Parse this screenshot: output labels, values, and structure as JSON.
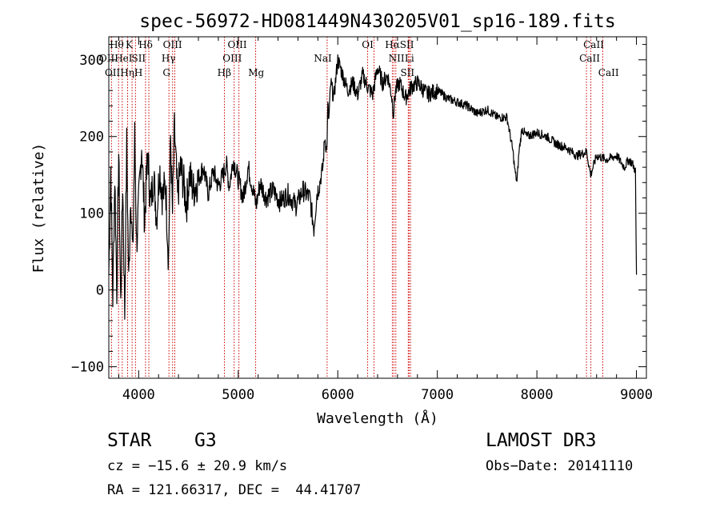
{
  "chart_data": {
    "type": "line",
    "title": "spec-56972-HD081449N430205V01_sp16-189.fits",
    "xlabel": "Wavelength (Å)",
    "ylabel": "Flux (relative)",
    "xlim": [
      3700,
      9100
    ],
    "ylim": [
      -115,
      330
    ],
    "x_ticks": [
      4000,
      5000,
      6000,
      7000,
      8000,
      9000
    ],
    "x_tick_labels": [
      "4000",
      "5000",
      "6000",
      "7000",
      "8000",
      "9000"
    ],
    "y_ticks": [
      -100,
      0,
      100,
      200,
      300
    ],
    "y_tick_labels": [
      "−100",
      "0",
      "100",
      "200",
      "300"
    ],
    "series": [
      {
        "name": "flux",
        "color": "#000000",
        "x": [
          3700,
          3720,
          3740,
          3760,
          3780,
          3800,
          3820,
          3840,
          3860,
          3880,
          3900,
          3920,
          3940,
          3960,
          3980,
          4000,
          4030,
          4060,
          4090,
          4120,
          4150,
          4180,
          4210,
          4240,
          4270,
          4300,
          4320,
          4340,
          4360,
          4390,
          4420,
          4450,
          4480,
          4510,
          4550,
          4600,
          4650,
          4700,
          4750,
          4800,
          4850,
          4880,
          4910,
          4950,
          5000,
          5050,
          5100,
          5150,
          5180,
          5220,
          5280,
          5350,
          5420,
          5500,
          5580,
          5650,
          5720,
          5760,
          5790,
          5820,
          5850,
          5870,
          5890,
          5900,
          5910,
          5930,
          5960,
          6000,
          6050,
          6100,
          6150,
          6200,
          6250,
          6300,
          6350,
          6400,
          6450,
          6500,
          6540,
          6560,
          6580,
          6620,
          6680,
          6740,
          6800,
          6900,
          7000,
          7100,
          7200,
          7300,
          7400,
          7500,
          7600,
          7700,
          7760,
          7780,
          7800,
          7820,
          7850,
          7900,
          8000,
          8100,
          8200,
          8300,
          8400,
          8500,
          8540,
          8600,
          8700,
          8800,
          8880,
          8920,
          8960,
          8990,
          9000
        ],
        "y": [
          20,
          160,
          -10,
          150,
          0,
          180,
          -20,
          140,
          -30,
          190,
          10,
          130,
          40,
          200,
          60,
          110,
          190,
          90,
          180,
          110,
          150,
          95,
          160,
          120,
          140,
          40,
          200,
          100,
          210,
          120,
          160,
          140,
          110,
          150,
          130,
          145,
          160,
          125,
          155,
          135,
          150,
          165,
          135,
          170,
          145,
          120,
          160,
          130,
          110,
          140,
          120,
          130,
          115,
          125,
          110,
          130,
          120,
          80,
          125,
          140,
          160,
          200,
          180,
          240,
          220,
          270,
          250,
          300,
          280,
          260,
          270,
          255,
          280,
          265,
          255,
          290,
          270,
          280,
          255,
          230,
          260,
          270,
          250,
          265,
          270,
          255,
          260,
          250,
          245,
          240,
          230,
          235,
          225,
          225,
          180,
          155,
          140,
          180,
          210,
          200,
          205,
          200,
          190,
          185,
          175,
          180,
          150,
          175,
          170,
          175,
          160,
          170,
          165,
          155,
          20
        ]
      }
    ],
    "lines": [
      {
        "name": "Hθ",
        "x": 3798
      },
      {
        "name": "OII",
        "x": 3727
      },
      {
        "name": "Hη",
        "x": 3835
      },
      {
        "name": "K",
        "x": 3934
      },
      {
        "name": "HeI",
        "x": 3889
      },
      {
        "name": "H",
        "x": 3968
      },
      {
        "name": "Hδ",
        "x": 4102
      },
      {
        "name": "SII",
        "x": 4069
      },
      {
        "name": "OIII",
        "x": 4363
      },
      {
        "name": "Hγ",
        "x": 4341
      },
      {
        "name": "G",
        "x": 4304
      },
      {
        "name": "OIII",
        "x": 5007
      },
      {
        "name": "OIII",
        "x": 4959
      },
      {
        "name": "Hβ",
        "x": 4861
      },
      {
        "name": "Mg",
        "x": 5175
      },
      {
        "name": "NaI",
        "x": 5893
      },
      {
        "name": "OI",
        "x": 6300
      },
      {
        "name": "OI",
        "x": 6364
      },
      {
        "name": "Hα",
        "x": 6563
      },
      {
        "name": "NII",
        "x": 6548
      },
      {
        "name": "NII",
        "x": 6583
      },
      {
        "name": "SII",
        "x": 6716
      },
      {
        "name": "SII",
        "x": 6731
      },
      {
        "name": "Li",
        "x": 6708
      },
      {
        "name": "CaII",
        "x": 8498
      },
      {
        "name": "CaII",
        "x": 8542
      },
      {
        "name": "CaII",
        "x": 8662
      }
    ],
    "line_labels": [
      {
        "text": "Hθ",
        "x": 3780,
        "row": 0
      },
      {
        "text": "K",
        "x": 3905,
        "row": 0
      },
      {
        "text": "Hδ",
        "x": 4070,
        "row": 0
      },
      {
        "text": "OIII",
        "x": 4340,
        "row": 0
      },
      {
        "text": "OIII",
        "x": 4990,
        "row": 0
      },
      {
        "text": "OI",
        "x": 6300,
        "row": 0
      },
      {
        "text": "HαSII",
        "x": 6620,
        "row": 0
      },
      {
        "text": "CaII",
        "x": 8570,
        "row": 0
      },
      {
        "text": "OIIHeI",
        "x": 3770,
        "row": 1
      },
      {
        "text": "SII",
        "x": 4000,
        "row": 1
      },
      {
        "text": "Hγ",
        "x": 4300,
        "row": 1
      },
      {
        "text": "OIII",
        "x": 4940,
        "row": 1
      },
      {
        "text": "NaI",
        "x": 5850,
        "row": 1
      },
      {
        "text": "NII",
        "x": 6590,
        "row": 1
      },
      {
        "text": "Li",
        "x": 6720,
        "row": 1
      },
      {
        "text": "CaII",
        "x": 8530,
        "row": 1
      },
      {
        "text": "OIIHηH",
        "x": 3850,
        "row": 2
      },
      {
        "text": "G",
        "x": 4280,
        "row": 2
      },
      {
        "text": "Hβ",
        "x": 4860,
        "row": 2
      },
      {
        "text": "Mg",
        "x": 5180,
        "row": 2
      },
      {
        "text": "SII",
        "x": 6700,
        "row": 2
      },
      {
        "text": "CaII",
        "x": 8720,
        "row": 2
      }
    ]
  },
  "info": {
    "object_class": "STAR",
    "subclass": "G3",
    "survey": "LAMOST DR3",
    "redshift_line": "cz = −15.6 ± 20.9 km/s",
    "obs_date_line": "Obs−Date: 20141110",
    "coords_line": "RA = 121.66317, DEC =  44.41707"
  },
  "colors": {
    "axis": "#000000",
    "spectrum": "#000000",
    "line_marker": "#cc0000"
  }
}
